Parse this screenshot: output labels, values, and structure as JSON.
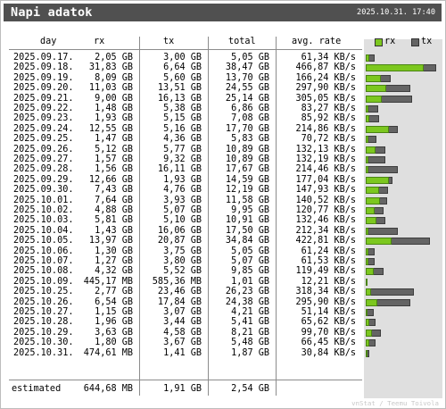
{
  "title": "Napi adatok",
  "timestamp": "2025.10.31. 17:40",
  "headers": {
    "day": "day",
    "rx": "rx",
    "tx": "tx",
    "total": "total",
    "avg": "avg. rate"
  },
  "legend": {
    "rx": "rx",
    "tx": "tx",
    "rx_color": "#7cc71f",
    "tx_color": "#646464"
  },
  "rows": [
    {
      "day": "2025.09.17.",
      "rx": "2,05 GB",
      "tx": "3,00 GB",
      "total": "5,05 GB",
      "avg": "61,34 KB/s",
      "rx_gb": 2.05,
      "tx_gb": 3.0
    },
    {
      "day": "2025.09.18.",
      "rx": "31,83 GB",
      "tx": "6,64 GB",
      "total": "38,47 GB",
      "avg": "466,87 KB/s",
      "rx_gb": 31.83,
      "tx_gb": 6.64
    },
    {
      "day": "2025.09.19.",
      "rx": "8,09 GB",
      "tx": "5,60 GB",
      "total": "13,70 GB",
      "avg": "166,24 KB/s",
      "rx_gb": 8.09,
      "tx_gb": 5.6
    },
    {
      "day": "2025.09.20.",
      "rx": "11,03 GB",
      "tx": "13,51 GB",
      "total": "24,55 GB",
      "avg": "297,90 KB/s",
      "rx_gb": 11.03,
      "tx_gb": 13.51
    },
    {
      "day": "2025.09.21.",
      "rx": "9,00 GB",
      "tx": "16,13 GB",
      "total": "25,14 GB",
      "avg": "305,05 KB/s",
      "rx_gb": 9.0,
      "tx_gb": 16.13
    },
    {
      "day": "2025.09.22.",
      "rx": "1,48 GB",
      "tx": "5,38 GB",
      "total": "6,86 GB",
      "avg": "83,27 KB/s",
      "rx_gb": 1.48,
      "tx_gb": 5.38
    },
    {
      "day": "2025.09.23.",
      "rx": "1,93 GB",
      "tx": "5,15 GB",
      "total": "7,08 GB",
      "avg": "85,92 KB/s",
      "rx_gb": 1.93,
      "tx_gb": 5.15
    },
    {
      "day": "2025.09.24.",
      "rx": "12,55 GB",
      "tx": "5,16 GB",
      "total": "17,70 GB",
      "avg": "214,86 KB/s",
      "rx_gb": 12.55,
      "tx_gb": 5.16
    },
    {
      "day": "2025.09.25.",
      "rx": "1,47 GB",
      "tx": "4,36 GB",
      "total": "5,83 GB",
      "avg": "70,72 KB/s",
      "rx_gb": 1.47,
      "tx_gb": 4.36
    },
    {
      "day": "2025.09.26.",
      "rx": "5,12 GB",
      "tx": "5,77 GB",
      "total": "10,89 GB",
      "avg": "132,13 KB/s",
      "rx_gb": 5.12,
      "tx_gb": 5.77
    },
    {
      "day": "2025.09.27.",
      "rx": "1,57 GB",
      "tx": "9,32 GB",
      "total": "10,89 GB",
      "avg": "132,19 KB/s",
      "rx_gb": 1.57,
      "tx_gb": 9.32
    },
    {
      "day": "2025.09.28.",
      "rx": "1,56 GB",
      "tx": "16,11 GB",
      "total": "17,67 GB",
      "avg": "214,46 KB/s",
      "rx_gb": 1.56,
      "tx_gb": 16.11
    },
    {
      "day": "2025.09.29.",
      "rx": "12,66 GB",
      "tx": "1,93 GB",
      "total": "14,59 GB",
      "avg": "177,04 KB/s",
      "rx_gb": 12.66,
      "tx_gb": 1.93
    },
    {
      "day": "2025.09.30.",
      "rx": "7,43 GB",
      "tx": "4,76 GB",
      "total": "12,19 GB",
      "avg": "147,93 KB/s",
      "rx_gb": 7.43,
      "tx_gb": 4.76
    },
    {
      "day": "2025.10.01.",
      "rx": "7,64 GB",
      "tx": "3,93 GB",
      "total": "11,58 GB",
      "avg": "140,52 KB/s",
      "rx_gb": 7.64,
      "tx_gb": 3.93
    },
    {
      "day": "2025.10.02.",
      "rx": "4,88 GB",
      "tx": "5,07 GB",
      "total": "9,95 GB",
      "avg": "120,77 KB/s",
      "rx_gb": 4.88,
      "tx_gb": 5.07
    },
    {
      "day": "2025.10.03.",
      "rx": "5,81 GB",
      "tx": "5,10 GB",
      "total": "10,91 GB",
      "avg": "132,46 KB/s",
      "rx_gb": 5.81,
      "tx_gb": 5.1
    },
    {
      "day": "2025.10.04.",
      "rx": "1,43 GB",
      "tx": "16,06 GB",
      "total": "17,50 GB",
      "avg": "212,34 KB/s",
      "rx_gb": 1.43,
      "tx_gb": 16.06
    },
    {
      "day": "2025.10.05.",
      "rx": "13,97 GB",
      "tx": "20,87 GB",
      "total": "34,84 GB",
      "avg": "422,81 KB/s",
      "rx_gb": 13.97,
      "tx_gb": 20.87
    },
    {
      "day": "2025.10.06.",
      "rx": "1,30 GB",
      "tx": "3,75 GB",
      "total": "5,05 GB",
      "avg": "61,24 KB/s",
      "rx_gb": 1.3,
      "tx_gb": 3.75
    },
    {
      "day": "2025.10.07.",
      "rx": "1,27 GB",
      "tx": "3,80 GB",
      "total": "5,07 GB",
      "avg": "61,53 KB/s",
      "rx_gb": 1.27,
      "tx_gb": 3.8
    },
    {
      "day": "2025.10.08.",
      "rx": "4,32 GB",
      "tx": "5,52 GB",
      "total": "9,85 GB",
      "avg": "119,49 KB/s",
      "rx_gb": 4.32,
      "tx_gb": 5.52
    },
    {
      "day": "2025.10.09.",
      "rx": "445,17 MB",
      "tx": "585,36 MB",
      "total": "1,01 GB",
      "avg": "12,21 KB/s",
      "rx_gb": 0.43,
      "tx_gb": 0.57
    },
    {
      "day": "2025.10.25.",
      "rx": "2,77 GB",
      "tx": "23,46 GB",
      "total": "26,23 GB",
      "avg": "318,34 KB/s",
      "rx_gb": 2.77,
      "tx_gb": 23.46
    },
    {
      "day": "2025.10.26.",
      "rx": "6,54 GB",
      "tx": "17,84 GB",
      "total": "24,38 GB",
      "avg": "295,90 KB/s",
      "rx_gb": 6.54,
      "tx_gb": 17.84
    },
    {
      "day": "2025.10.27.",
      "rx": "1,15 GB",
      "tx": "3,07 GB",
      "total": "4,21 GB",
      "avg": "51,14 KB/s",
      "rx_gb": 1.15,
      "tx_gb": 3.07
    },
    {
      "day": "2025.10.28.",
      "rx": "1,96 GB",
      "tx": "3,44 GB",
      "total": "5,41 GB",
      "avg": "65,62 KB/s",
      "rx_gb": 1.96,
      "tx_gb": 3.44
    },
    {
      "day": "2025.10.29.",
      "rx": "3,63 GB",
      "tx": "4,58 GB",
      "total": "8,21 GB",
      "avg": "99,70 KB/s",
      "rx_gb": 3.63,
      "tx_gb": 4.58
    },
    {
      "day": "2025.10.30.",
      "rx": "1,80 GB",
      "tx": "3,67 GB",
      "total": "5,48 GB",
      "avg": "66,45 KB/s",
      "rx_gb": 1.8,
      "tx_gb": 3.67
    },
    {
      "day": "2025.10.31.",
      "rx": "474,61 MB",
      "tx": "1,41 GB",
      "total": "1,87 GB",
      "avg": "30,84 KB/s",
      "rx_gb": 0.46,
      "tx_gb": 1.41
    }
  ],
  "estimated": {
    "label": "estimated",
    "rx": "644,68 MB",
    "tx": "1,91 GB",
    "total": "2,54 GB"
  },
  "footer": "vnStat / Teemu Toivola"
}
